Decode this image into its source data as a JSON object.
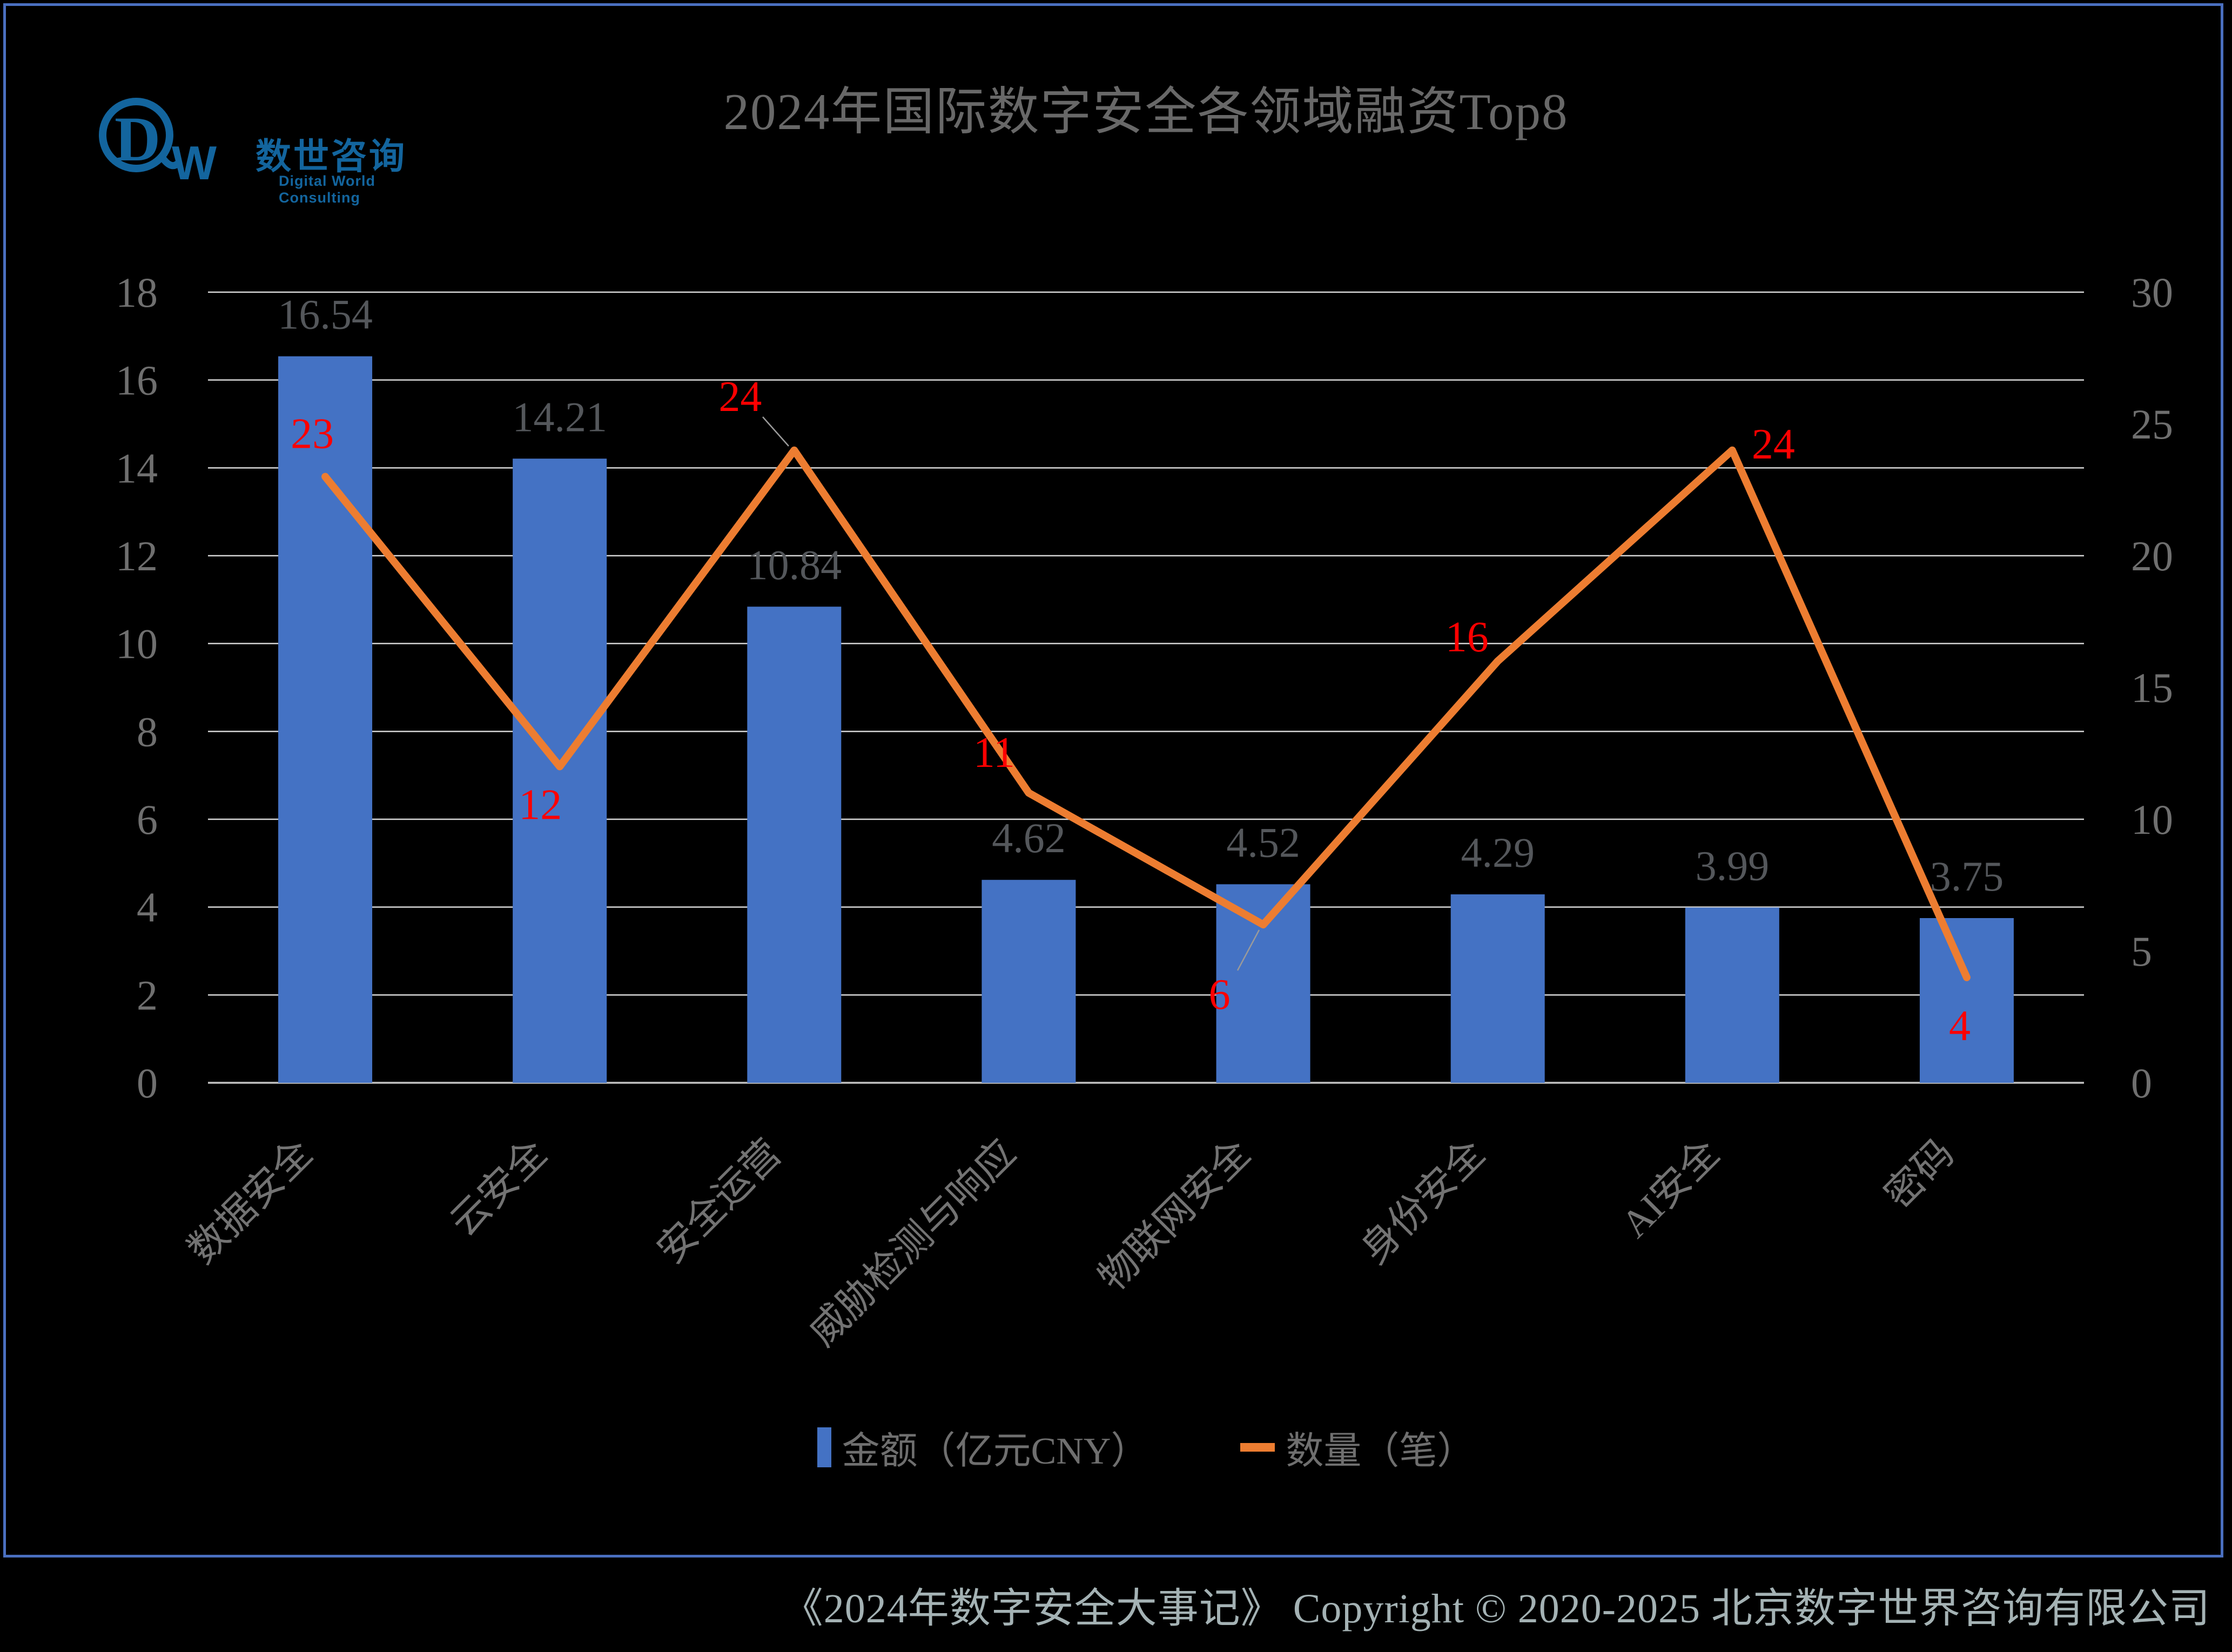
{
  "logo": {
    "brand_cn": "数世咨询",
    "brand_en": "Digital World Consulting",
    "mark_d": "D",
    "mark_w": "W",
    "color": "#13659e"
  },
  "header": {
    "title": "2024年国际数字安全各领域融资Top8"
  },
  "legend": [
    {
      "label": "金额（亿元CNY）",
      "marker": "bar-swatch",
      "color": "#4472C4"
    },
    {
      "label": "数量（笔）",
      "marker": "line-swatch",
      "color": "#ED7D31"
    }
  ],
  "footer": {
    "text": "《2024年数字安全大事记》  Copyright © 2020-2025 北京数字世界咨询有限公司"
  },
  "colors": {
    "background": "#000000",
    "border_blue": "#4a6fc0",
    "bar_blue": "#4472C4",
    "line_orange": "#ED7D31",
    "line_label_red": "#ff0000",
    "bar_label_gray": "#54575b",
    "axis_gray": "#6f6f6f",
    "title_gray": "#686868",
    "footer_gray_blue": "#a4b2b4",
    "gridline_gray": "#d6d6d6"
  },
  "chart_data": {
    "type": "bar",
    "subtype": "dual-axis bar+line combo",
    "title": "2024年国际数字安全各领域融资Top8",
    "categories": [
      "数据安全",
      "云安全",
      "安全运营",
      "威胁检测与响应",
      "物联网安全",
      "身份安全",
      "AI安全",
      "密码"
    ],
    "series": [
      {
        "name": "金额（亿元CNY）",
        "type": "bar",
        "axis": "left",
        "color": "#4472C4",
        "values": [
          16.54,
          14.21,
          10.84,
          4.62,
          4.52,
          4.29,
          3.99,
          3.75
        ]
      },
      {
        "name": "数量（笔）",
        "type": "line",
        "axis": "right",
        "color": "#ED7D31",
        "label_color": "#ff0000",
        "values": [
          23,
          12,
          24,
          11,
          6,
          16,
          24,
          4
        ]
      }
    ],
    "left_axis": {
      "min": 0,
      "max": 18,
      "step": 2
    },
    "right_axis": {
      "min": 0,
      "max": 30,
      "step": 5
    },
    "grid": true,
    "legend_position": "bottom"
  }
}
